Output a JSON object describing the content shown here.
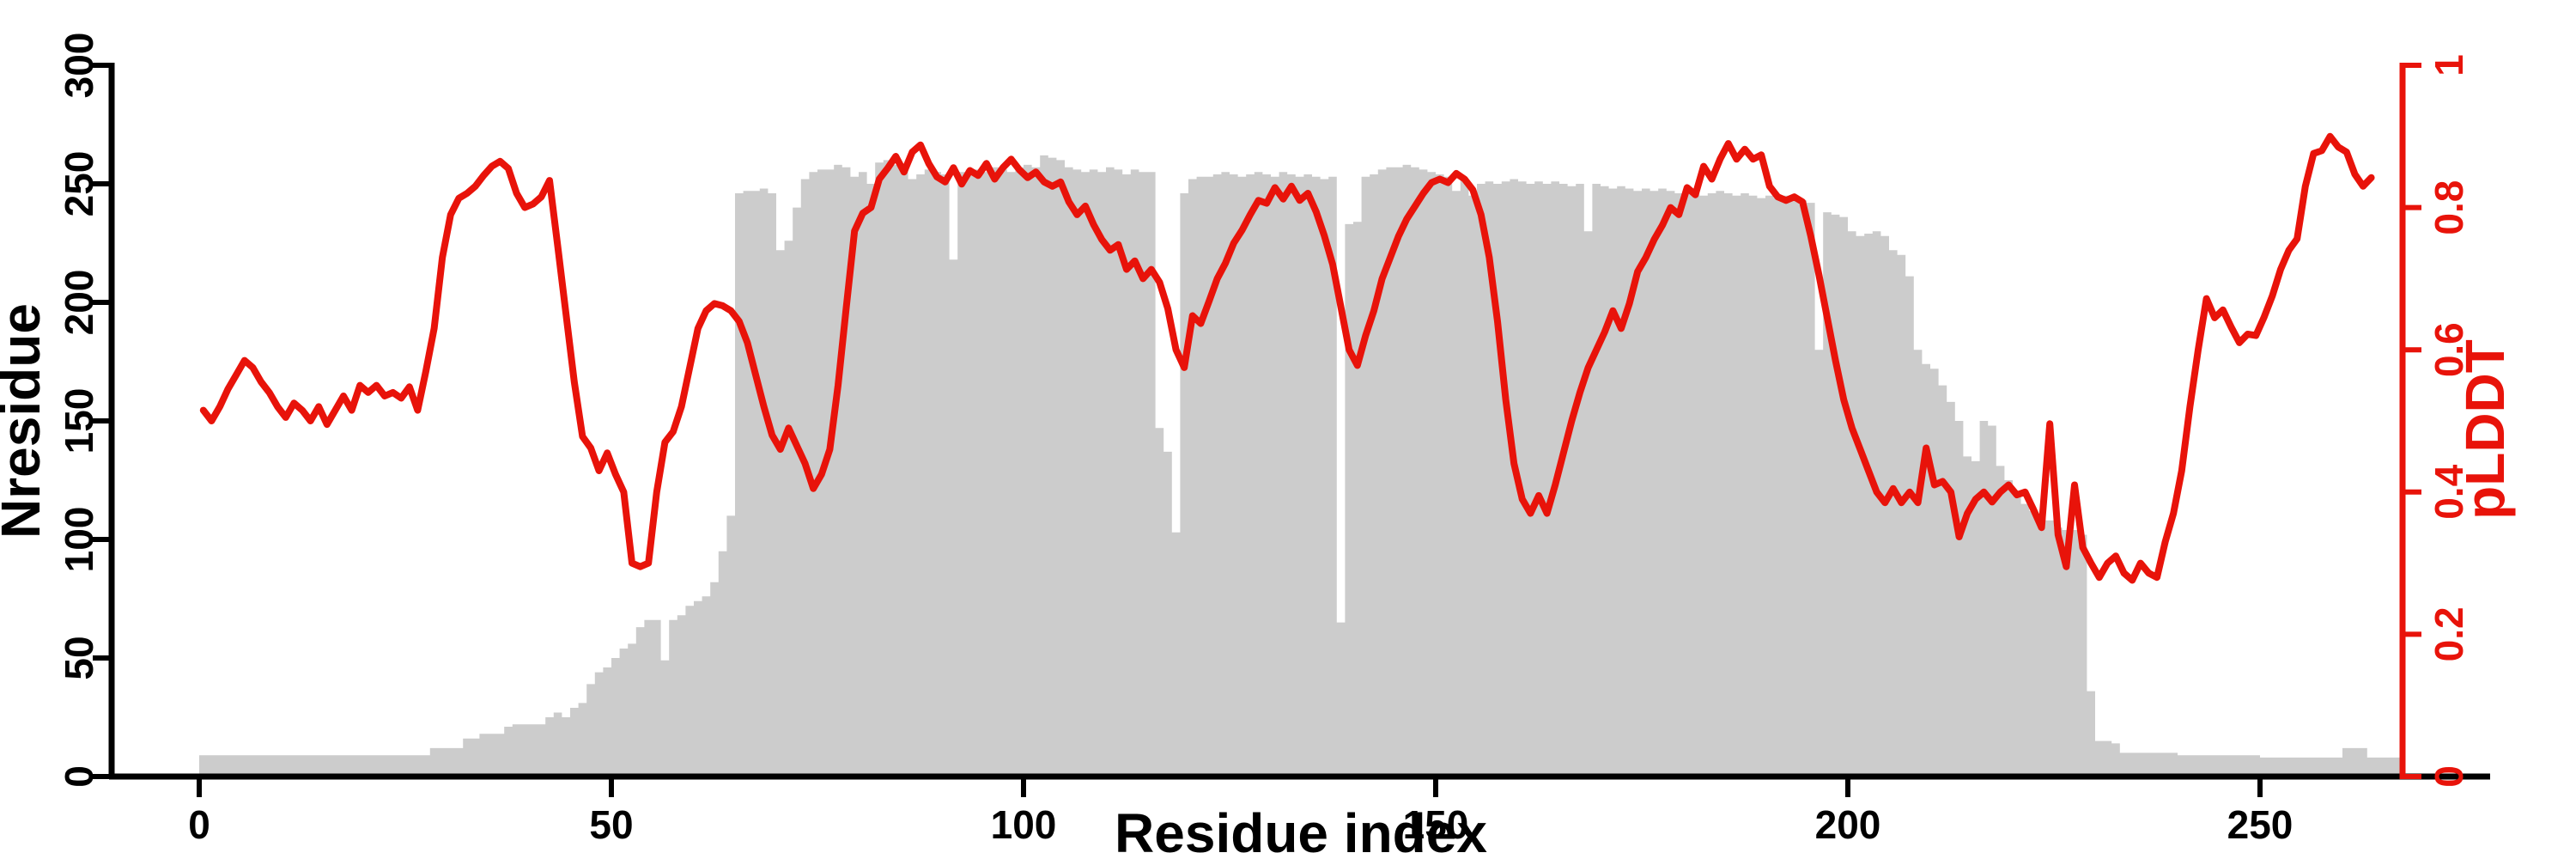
{
  "chart_data": {
    "type": "combo",
    "title": "",
    "xlabel": "Residue index",
    "x_ticks": [
      0,
      50,
      100,
      150,
      200,
      250
    ],
    "xlim": [
      0,
      278
    ],
    "grid": false,
    "left_axis": {
      "label": "Nresidue",
      "ticks": [
        0,
        50,
        100,
        150,
        200,
        250,
        300
      ],
      "lim": [
        0,
        300
      ],
      "color": "#000000"
    },
    "right_axis": {
      "label": "pLDDT",
      "ticks": [
        0,
        0.2,
        0.4,
        0.6,
        0.8,
        1
      ],
      "lim": [
        0,
        1
      ],
      "color": "#e8130a"
    },
    "series": [
      {
        "name": "Nresidue",
        "type": "bar",
        "axis": "left",
        "color": "#cccccc",
        "x_start": 1,
        "values": [
          9,
          9,
          9,
          9,
          9,
          9,
          9,
          9,
          9,
          9,
          9,
          9,
          9,
          9,
          9,
          9,
          9,
          9,
          9,
          9,
          9,
          9,
          9,
          9,
          9,
          9,
          9,
          9,
          12,
          12,
          12,
          12,
          16,
          16,
          18,
          18,
          18,
          21,
          22,
          22,
          22,
          22,
          25,
          27,
          25,
          29,
          31,
          39,
          44,
          46,
          50,
          54,
          56,
          63,
          66,
          66,
          49,
          66,
          68,
          72,
          74,
          76,
          82,
          95,
          110,
          246,
          247,
          247,
          248,
          246,
          222,
          226,
          240,
          252,
          255,
          256,
          256,
          258,
          257,
          253,
          255,
          250,
          259,
          260,
          258,
          256,
          252,
          254,
          256,
          255,
          254,
          218,
          255,
          256,
          256,
          255,
          257,
          256,
          255,
          257,
          258,
          257,
          262,
          261,
          260,
          257,
          256,
          255,
          256,
          255,
          257,
          256,
          254,
          256,
          255,
          255,
          147,
          137,
          103,
          246,
          252,
          253,
          253,
          254,
          255,
          254,
          253,
          254,
          255,
          254,
          253,
          255,
          254,
          253,
          254,
          253,
          252,
          253,
          65,
          233,
          234,
          253,
          254,
          256,
          257,
          257,
          258,
          257,
          256,
          255,
          254,
          253,
          247,
          252,
          245,
          250,
          251,
          250,
          251,
          252,
          251,
          250,
          251,
          250,
          251,
          250,
          249,
          250,
          230,
          250,
          249,
          248,
          249,
          248,
          247,
          248,
          247,
          248,
          247,
          246,
          247,
          246,
          245,
          246,
          247,
          246,
          245,
          246,
          245,
          244,
          245,
          244,
          245,
          244,
          243,
          242,
          180,
          238,
          237,
          236,
          230,
          228,
          229,
          230,
          228,
          222,
          220,
          211,
          180,
          174,
          172,
          165,
          158,
          150,
          135,
          133,
          150,
          148,
          131,
          125,
          120,
          115,
          112,
          110,
          108,
          105,
          104,
          104,
          102,
          36,
          15,
          15,
          14,
          10,
          10,
          10,
          10,
          10,
          10,
          10,
          9,
          9,
          9,
          9,
          9,
          9,
          9,
          9,
          9,
          9,
          8,
          8,
          8,
          8,
          8,
          8,
          8,
          8,
          8,
          8,
          12,
          12,
          12,
          8,
          8,
          8,
          8
        ]
      },
      {
        "name": "pLDDT",
        "type": "line",
        "axis": "right",
        "color": "#e8130a",
        "stroke_width": 8,
        "x_start": 1,
        "values": [
          0.515,
          0.5,
          0.52,
          0.545,
          0.565,
          0.585,
          0.575,
          0.555,
          0.54,
          0.52,
          0.505,
          0.525,
          0.515,
          0.5,
          0.52,
          0.495,
          0.515,
          0.535,
          0.515,
          0.55,
          0.54,
          0.55,
          0.535,
          0.54,
          0.532,
          0.548,
          0.515,
          0.57,
          0.63,
          0.73,
          0.79,
          0.813,
          0.82,
          0.83,
          0.845,
          0.858,
          0.865,
          0.855,
          0.82,
          0.8,
          0.805,
          0.815,
          0.838,
          0.745,
          0.65,
          0.555,
          0.478,
          0.462,
          0.43,
          0.455,
          0.425,
          0.4,
          0.3,
          0.295,
          0.3,
          0.4,
          0.47,
          0.485,
          0.52,
          0.575,
          0.63,
          0.655,
          0.665,
          0.662,
          0.655,
          0.64,
          0.61,
          0.565,
          0.52,
          0.48,
          0.46,
          0.49,
          0.465,
          0.44,
          0.405,
          0.425,
          0.46,
          0.55,
          0.66,
          0.767,
          0.792,
          0.8,
          0.84,
          0.855,
          0.872,
          0.85,
          0.878,
          0.888,
          0.862,
          0.843,
          0.836,
          0.856,
          0.833,
          0.852,
          0.845,
          0.862,
          0.84,
          0.856,
          0.868,
          0.853,
          0.842,
          0.85,
          0.836,
          0.83,
          0.836,
          0.808,
          0.79,
          0.802,
          0.776,
          0.755,
          0.74,
          0.748,
          0.713,
          0.725,
          0.7,
          0.713,
          0.695,
          0.658,
          0.6,
          0.575,
          0.648,
          0.637,
          0.668,
          0.7,
          0.722,
          0.75,
          0.768,
          0.79,
          0.81,
          0.806,
          0.828,
          0.812,
          0.83,
          0.81,
          0.82,
          0.794,
          0.76,
          0.72,
          0.66,
          0.6,
          0.578,
          0.62,
          0.655,
          0.7,
          0.73,
          0.76,
          0.784,
          0.802,
          0.82,
          0.835,
          0.84,
          0.835,
          0.848,
          0.84,
          0.825,
          0.79,
          0.73,
          0.64,
          0.53,
          0.44,
          0.39,
          0.37,
          0.395,
          0.37,
          0.41,
          0.455,
          0.5,
          0.54,
          0.575,
          0.6,
          0.625,
          0.655,
          0.63,
          0.665,
          0.71,
          0.73,
          0.755,
          0.775,
          0.8,
          0.79,
          0.828,
          0.818,
          0.858,
          0.84,
          0.868,
          0.89,
          0.868,
          0.882,
          0.868,
          0.874,
          0.83,
          0.815,
          0.81,
          0.815,
          0.808,
          0.76,
          0.705,
          0.645,
          0.585,
          0.53,
          0.49,
          0.46,
          0.43,
          0.4,
          0.385,
          0.405,
          0.385,
          0.4,
          0.385,
          0.462,
          0.41,
          0.415,
          0.4,
          0.337,
          0.37,
          0.39,
          0.4,
          0.386,
          0.4,
          0.41,
          0.396,
          0.4,
          0.376,
          0.35,
          0.496,
          0.34,
          0.295,
          0.41,
          0.322,
          0.3,
          0.28,
          0.3,
          0.31,
          0.286,
          0.276,
          0.3,
          0.286,
          0.28,
          0.33,
          0.37,
          0.43,
          0.52,
          0.6,
          0.672,
          0.645,
          0.656,
          0.632,
          0.61,
          0.622,
          0.62,
          0.646,
          0.676,
          0.713,
          0.74,
          0.756,
          0.83,
          0.876,
          0.88,
          0.9,
          0.885,
          0.878,
          0.847,
          0.83,
          0.842
        ]
      }
    ]
  }
}
